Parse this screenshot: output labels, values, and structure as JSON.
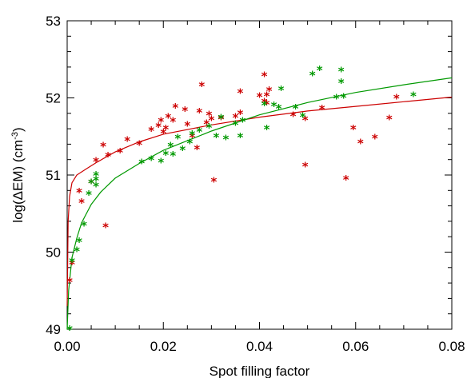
{
  "chart_data": {
    "type": "scatter",
    "title": "",
    "xlabel": "Spot filling factor",
    "ylabel_main": "log(ΔEM) (cm",
    "ylabel_sup": "-3",
    "ylabel_close": ")",
    "xlim": [
      0.0,
      0.08
    ],
    "ylim": [
      49,
      53
    ],
    "x_ticks": [
      0.0,
      0.02,
      0.04,
      0.06,
      0.08
    ],
    "x_tick_labels": [
      "0.00",
      "0.02",
      "0.04",
      "0.06",
      "0.08"
    ],
    "y_ticks": [
      49,
      50,
      51,
      52,
      53
    ],
    "y_tick_labels": [
      "49",
      "50",
      "51",
      "52",
      "53"
    ],
    "grid": false,
    "legend": "none",
    "marker": "*",
    "series": [
      {
        "color": "#cc0000",
        "points": [
          [
            0.0005,
            49.62
          ],
          [
            0.001,
            49.85
          ],
          [
            0.0025,
            50.78
          ],
          [
            0.003,
            50.65
          ],
          [
            0.005,
            50.9
          ],
          [
            0.006,
            51.18
          ],
          [
            0.0075,
            51.38
          ],
          [
            0.008,
            50.33
          ],
          [
            0.0085,
            51.25
          ],
          [
            0.011,
            51.3
          ],
          [
            0.0125,
            51.45
          ],
          [
            0.015,
            51.4
          ],
          [
            0.0175,
            51.58
          ],
          [
            0.019,
            51.63
          ],
          [
            0.0195,
            51.7
          ],
          [
            0.02,
            51.55
          ],
          [
            0.0205,
            51.6
          ],
          [
            0.021,
            51.75
          ],
          [
            0.022,
            51.7
          ],
          [
            0.0225,
            51.88
          ],
          [
            0.0245,
            51.84
          ],
          [
            0.025,
            51.65
          ],
          [
            0.026,
            51.5
          ],
          [
            0.027,
            51.34
          ],
          [
            0.0275,
            51.82
          ],
          [
            0.028,
            52.16
          ],
          [
            0.029,
            51.67
          ],
          [
            0.0295,
            51.78
          ],
          [
            0.03,
            51.72
          ],
          [
            0.0305,
            50.92
          ],
          [
            0.032,
            51.73
          ],
          [
            0.035,
            51.75
          ],
          [
            0.036,
            51.8
          ],
          [
            0.036,
            52.07
          ],
          [
            0.04,
            52.02
          ],
          [
            0.041,
            52.29
          ],
          [
            0.041,
            51.95
          ],
          [
            0.0415,
            51.92
          ],
          [
            0.0415,
            52.03
          ],
          [
            0.042,
            52.1
          ],
          [
            0.047,
            51.77
          ],
          [
            0.0495,
            51.72
          ],
          [
            0.0495,
            51.12
          ],
          [
            0.053,
            51.86
          ],
          [
            0.058,
            50.95
          ],
          [
            0.0595,
            51.6
          ],
          [
            0.061,
            51.42
          ],
          [
            0.064,
            51.48
          ],
          [
            0.067,
            51.73
          ],
          [
            0.0685,
            52.0
          ]
        ]
      },
      {
        "color": "#009900",
        "points": [
          [
            0.0005,
            49.0
          ],
          [
            0.001,
            49.88
          ],
          [
            0.002,
            50.02
          ],
          [
            0.0025,
            50.14
          ],
          [
            0.0035,
            50.35
          ],
          [
            0.0045,
            50.75
          ],
          [
            0.005,
            50.9
          ],
          [
            0.006,
            51.0
          ],
          [
            0.006,
            50.94
          ],
          [
            0.006,
            50.86
          ],
          [
            0.0155,
            51.16
          ],
          [
            0.0175,
            51.2
          ],
          [
            0.0195,
            51.17
          ],
          [
            0.0205,
            51.27
          ],
          [
            0.0215,
            51.38
          ],
          [
            0.022,
            51.26
          ],
          [
            0.023,
            51.48
          ],
          [
            0.024,
            51.33
          ],
          [
            0.0255,
            51.42
          ],
          [
            0.026,
            51.53
          ],
          [
            0.0275,
            51.57
          ],
          [
            0.0295,
            51.62
          ],
          [
            0.031,
            51.5
          ],
          [
            0.032,
            51.74
          ],
          [
            0.033,
            51.47
          ],
          [
            0.035,
            51.66
          ],
          [
            0.036,
            51.5
          ],
          [
            0.0365,
            51.7
          ],
          [
            0.041,
            51.91
          ],
          [
            0.0415,
            51.6
          ],
          [
            0.043,
            51.9
          ],
          [
            0.044,
            51.87
          ],
          [
            0.0445,
            52.11
          ],
          [
            0.0475,
            51.87
          ],
          [
            0.049,
            51.76
          ],
          [
            0.051,
            52.3
          ],
          [
            0.0525,
            52.37
          ],
          [
            0.056,
            52.0
          ],
          [
            0.057,
            52.35
          ],
          [
            0.057,
            52.2
          ],
          [
            0.0575,
            52.01
          ],
          [
            0.072,
            52.03
          ]
        ]
      }
    ],
    "fit_curves": [
      {
        "color": "#cc0000",
        "x": [
          0.0,
          0.0002,
          0.0005,
          0.001,
          0.002,
          0.004,
          0.006,
          0.01,
          0.015,
          0.02,
          0.03,
          0.04,
          0.05,
          0.06,
          0.07,
          0.08
        ],
        "y": [
          49.3,
          50.4,
          50.72,
          50.9,
          51.0,
          51.08,
          51.16,
          51.3,
          51.43,
          51.53,
          51.65,
          51.75,
          51.83,
          51.89,
          51.95,
          52.01
        ]
      },
      {
        "color": "#009900",
        "x": [
          0.0,
          0.0003,
          0.001,
          0.002,
          0.003,
          0.005,
          0.007,
          0.01,
          0.015,
          0.02,
          0.03,
          0.04,
          0.05,
          0.06,
          0.07,
          0.08
        ],
        "y": [
          48.95,
          49.5,
          49.93,
          50.18,
          50.38,
          50.62,
          50.78,
          50.96,
          51.15,
          51.32,
          51.57,
          51.78,
          51.94,
          52.07,
          52.17,
          52.26
        ]
      }
    ]
  }
}
